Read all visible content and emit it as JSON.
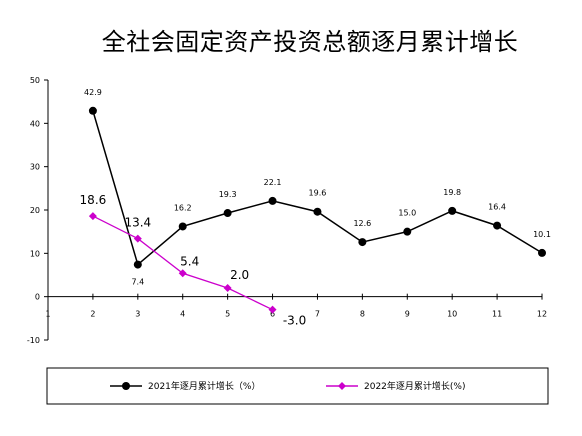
{
  "chart_data": {
    "type": "line",
    "title": "全社会固定资产投资总额逐月累计增长",
    "x": [
      1,
      2,
      3,
      4,
      5,
      6,
      7,
      8,
      9,
      10,
      11,
      12
    ],
    "x_tick_labels": [
      "1",
      "2",
      "3",
      "4",
      "5",
      "6",
      "7",
      "8",
      "9",
      "10",
      "11",
      "12"
    ],
    "y_ticks": [
      "50",
      "40",
      "30",
      "20",
      "10",
      "0",
      "-10"
    ],
    "ylim": [
      -10,
      50
    ],
    "xlim": [
      1,
      12
    ],
    "grid": false,
    "legend_position": "bottom",
    "series": [
      {
        "name": "2021年逐月累计增长（%）",
        "color": "#000000",
        "marker": "circle",
        "x": [
          2,
          3,
          4,
          5,
          6,
          7,
          8,
          9,
          10,
          11,
          12
        ],
        "values": [
          42.9,
          7.4,
          16.2,
          19.3,
          22.1,
          19.6,
          12.6,
          15.0,
          19.8,
          16.4,
          10.1
        ],
        "labels": [
          "42.9",
          "7.4",
          "16.2",
          "19.3",
          "22.1",
          "19.6",
          "12.6",
          "15.0",
          "19.8",
          "16.4",
          "10.1"
        ]
      },
      {
        "name": "2022年逐月累计增长(%)",
        "color": "#cc00cc",
        "marker": "diamond",
        "x": [
          2,
          3,
          4,
          5,
          6
        ],
        "values": [
          18.6,
          13.4,
          5.4,
          2.0,
          -3.0
        ],
        "labels": [
          "18.6",
          "13.4",
          "5.4",
          "2.0",
          "-3.0"
        ]
      }
    ]
  }
}
